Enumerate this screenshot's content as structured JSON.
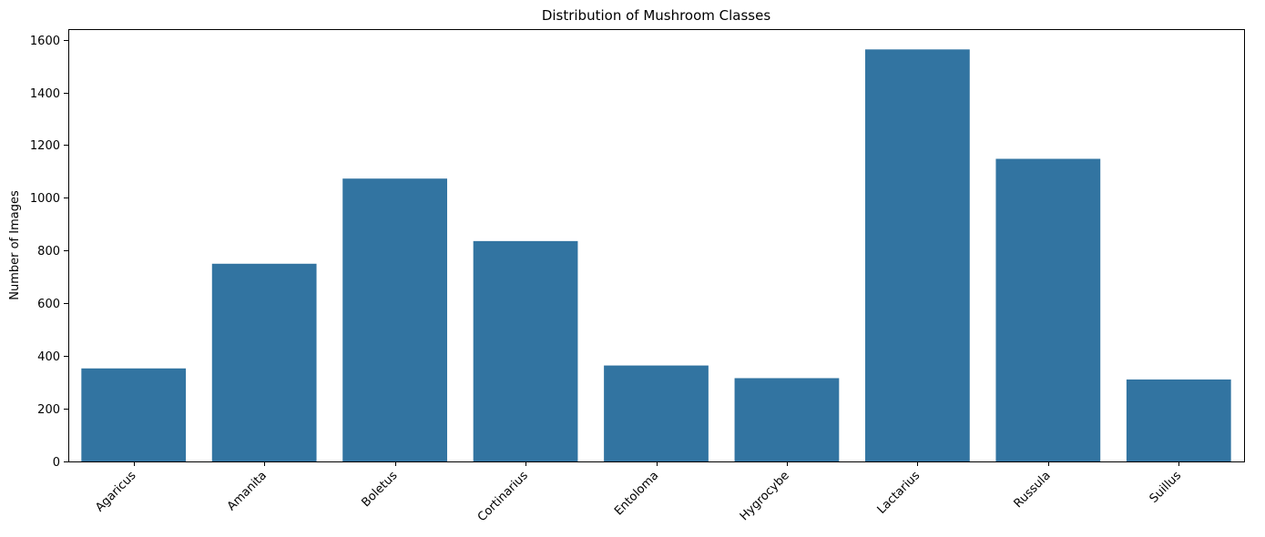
{
  "chart_data": {
    "type": "bar",
    "title": "Distribution of Mushroom Classes",
    "xlabel": "",
    "ylabel": "Number of Images",
    "categories": [
      "Agaricus",
      "Amanita",
      "Boletus",
      "Cortinarius",
      "Entoloma",
      "Hygrocybe",
      "Lactarius",
      "Russula",
      "Suillus"
    ],
    "values": [
      353,
      750,
      1073,
      836,
      364,
      316,
      1563,
      1148,
      311
    ],
    "ylim": [
      0,
      1640
    ],
    "yticks": [
      "0",
      "200",
      "400",
      "600",
      "800",
      "1000",
      "1200",
      "1400",
      "1600"
    ],
    "bar_color": "#3274a1",
    "grid": false,
    "legend": "none"
  }
}
